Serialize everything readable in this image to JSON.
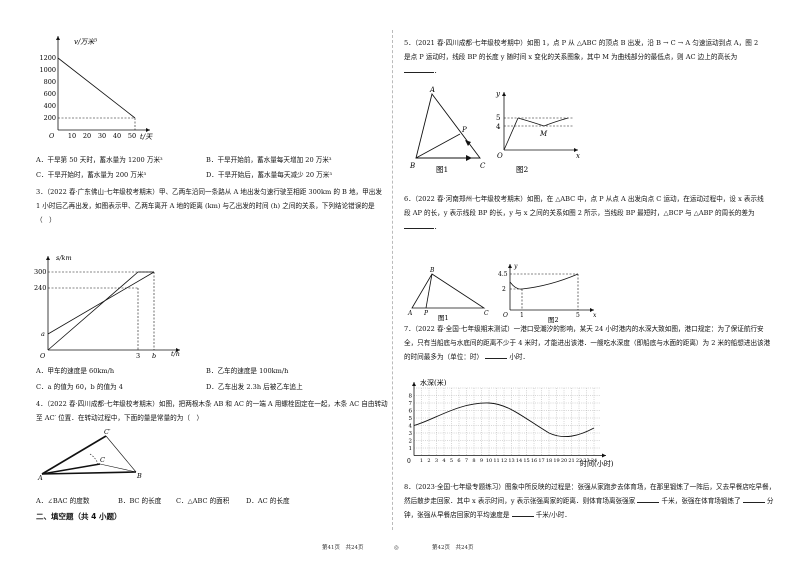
{
  "left": {
    "graph1": {
      "ylabel": "v/万米³",
      "xlabel": "t/天",
      "origin": "O",
      "yticks": [
        "1200",
        "1000",
        "800",
        "600",
        "400",
        "200"
      ],
      "xticks": [
        "10",
        "20",
        "30",
        "40",
        "50"
      ]
    },
    "q2_options": {
      "A": "A．干旱第 50 天时，蓄水量为 1200 万米³",
      "B": "B．干旱开始前，蓄水量每天增加 20 万米³",
      "C": "C．干旱开始时，蓄水量为 200 万米³",
      "D": "D．干旱开始后，蓄水量每天减少 20 万米³"
    },
    "q3_text": "3．（2022 春·广东佛山·七年级校考期末）甲、乙两车沿同一条路从 A 地出发匀速行驶至相距 300km 的 B 地，甲出发 1 小时后乙再出发，如图表示甲、乙两车离开 A 地的距离 (km) 与乙出发的时间 (h) 之间的关系，下列结论错误的是（　）",
    "graph3": {
      "ylabel": "s/km",
      "xlabel": "t/h",
      "origin": "O",
      "y300": "300",
      "y240": "240",
      "ya": "a",
      "x3": "3",
      "xb": "b"
    },
    "q3_options": {
      "A": "A．甲车的速度是 60km/h",
      "B": "B．乙车的速度是 100km/h",
      "C": "C．a 的值为 60，b 的值为 4",
      "D": "D．乙车出发 2.3h 后被乙车追上"
    },
    "q4_text": "4．（2022 春·四川成都·七年级校考期末）如图，把两根木条 AB 和 AC 的一端 A 用螺栓固定在一起，木条 AC 自由转动至 AC′ 位置．在转动过程中，下面的量是常量的为（　）",
    "graph4": {
      "A": "A",
      "B": "B",
      "C": "C",
      "C2": "C′"
    },
    "q4_options": {
      "A": "A．∠BAC 的度数",
      "B": "B．BC 的长度",
      "C": "C．△ABC 的面积",
      "D": "D．AC 的长度"
    },
    "section2": "二、填空题（共 4 小题）"
  },
  "right": {
    "q5_text": "5．（2021 春·四川成都·七年级校考期中）如图 1，点 P 从 △ABC 的顶点 B 出发，沿 B → C → A 匀速运动到点 A，图 2 是点 P 运动时，线段 BP 的长度 y 随时间 x 变化的关系图象，其中 M 为曲线部分的最低点，则 AC 边上的高长为",
    "fig5_1": {
      "A": "A",
      "B": "B",
      "C": "C",
      "P": "P",
      "caption": "图1"
    },
    "fig5_2": {
      "y": "y",
      "x": "x",
      "O": "O",
      "M": "M",
      "v5": "5",
      "v4": "4",
      "caption": "图2"
    },
    "q6_text": "6．（2022 春·河南郑州·七年级校考期末）如图，在 △ABC 中，点 P 从点 A 出发向点 C 运动，在运动过程中，设 x 表示线段 AP 的长，y 表示线段 BP 的长，y 与 x 之间的关系如图 2 所示，当线段 BP 最短时，△BCP 与 △ABP 的周长的差为",
    "fig6_1": {
      "A": "A",
      "B": "B",
      "C": "C",
      "P": "P",
      "caption": "图1"
    },
    "fig6_2": {
      "y": "y",
      "x": "x",
      "O": "O",
      "v45": "4.5",
      "v2": "2",
      "x1": "1",
      "x5": "5",
      "caption": "图2"
    },
    "q7_text": "7．（2022 春·全国·七年级期末测试）一港口受潮汐的影响，某天 24 小时港内的水深大致如图，港口规定：为了保证航行安全，只有当船底与水底间的距离不少于 4 米时，才能进出该港．一艘吃水深度（即船底与水面的距离）为 2 米的船想进出该港的时间最多为（单位：时）",
    "q7_unit": "小时．",
    "fig7": {
      "ylabel": "水深(米)",
      "xlabel": "时间(小时)",
      "origin": "0",
      "yticks": [
        "1",
        "2",
        "3",
        "4",
        "5",
        "6",
        "7",
        "8"
      ],
      "xticks": [
        "1",
        "2",
        "3",
        "4",
        "5",
        "6",
        "7",
        "8",
        "9",
        "10",
        "11",
        "12",
        "13",
        "14",
        "15",
        "16",
        "17",
        "18",
        "19",
        "20",
        "21",
        "22",
        "23",
        "24"
      ]
    },
    "q8_text": "8．（2023·全国·七年级专题练习）图象中所反映的过程是：张强从家跑步去体育场，在那里锻炼了一阵后，又去早餐店吃早餐，然后散步走回家．其中 x 表示时间，y 表示张强离家的距离．则体育场离张强家",
    "q8_mid": "千米，张强在体育场锻炼了",
    "q8_mid2": "分钟，张强从早餐店回家的平均速度是",
    "q8_end": "千米/小时．"
  },
  "footer": {
    "left": "第41页　共24页",
    "circle": "◎",
    "right": "第42页　共24页"
  }
}
